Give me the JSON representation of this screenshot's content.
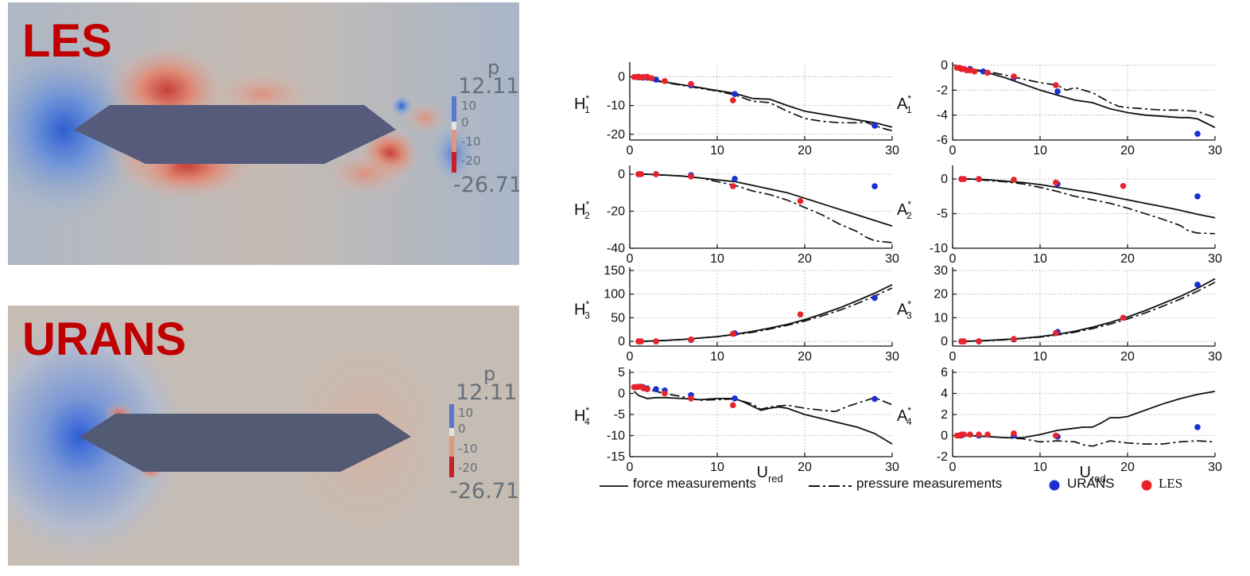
{
  "colors": {
    "blue_marker": "#1a2fd0",
    "red_marker": "#e8232a",
    "body_fill": "#555a7a",
    "label_red": "#c00000"
  },
  "left_panels": {
    "les": {
      "label": "LES",
      "colorbar": {
        "title": "p",
        "max": "12.11",
        "min": "-26.71",
        "ticks": [
          "10",
          "0",
          "-10",
          "-20"
        ]
      }
    },
    "urans": {
      "label": "URANS",
      "colorbar": {
        "title": "p",
        "max": "12.11",
        "min": "-26.71",
        "ticks": [
          "10",
          "0",
          "-10",
          "-20"
        ]
      }
    }
  },
  "legend": {
    "force": "force measurements",
    "pressure": "pressure measurements",
    "urans": "URANS",
    "les": "LES"
  },
  "chart_data": [
    {
      "id": "H1",
      "type": "line",
      "ylabel": "H1*",
      "xlim": [
        0,
        30
      ],
      "ylim": [
        -22,
        4
      ],
      "yticks": [
        0,
        -10,
        -20
      ],
      "series": [
        {
          "name": "force measurements",
          "style": "solid",
          "x": [
            0.5,
            2,
            4,
            6,
            8,
            10,
            12,
            14,
            15,
            16,
            18,
            20,
            22,
            24,
            26,
            28,
            30
          ],
          "y": [
            -0.2,
            -0.8,
            -1.8,
            -2.8,
            -3.8,
            -4.8,
            -5.8,
            -7.5,
            -7.7,
            -7.8,
            -10,
            -12,
            -13,
            -14,
            -15,
            -16,
            -17.5
          ]
        },
        {
          "name": "pressure measurements",
          "style": "dashdot",
          "x": [
            0.5,
            2,
            4,
            6,
            8,
            10,
            12,
            14,
            16,
            18,
            20,
            22,
            24,
            26,
            27,
            28,
            29,
            30
          ],
          "y": [
            -0.3,
            -1,
            -2,
            -3,
            -4,
            -5,
            -6.3,
            -8.5,
            -9,
            -12,
            -14.5,
            -15.5,
            -16,
            -16,
            -15.8,
            -17,
            -18,
            -18.8
          ]
        },
        {
          "name": "URANS",
          "marker": "blue",
          "x": [
            1,
            1.5,
            2,
            3,
            7,
            12,
            28
          ],
          "y": [
            -0.2,
            -0.3,
            -0.3,
            -1,
            -3,
            -6,
            -17
          ]
        },
        {
          "name": "LES",
          "marker": "red",
          "x": [
            0.5,
            0.8,
            1,
            1.3,
            1.6,
            2,
            2.5,
            4,
            7,
            11.8
          ],
          "y": [
            -0.1,
            -0.1,
            0,
            -0.2,
            -0.1,
            0,
            -0.5,
            -1.5,
            -2.5,
            -8.2
          ]
        }
      ]
    },
    {
      "id": "A1",
      "type": "line",
      "ylabel": "A1*",
      "xlim": [
        0,
        30
      ],
      "ylim": [
        -6,
        0
      ],
      "yticks": [
        0,
        -2,
        -4,
        -6
      ],
      "series": [
        {
          "name": "force measurements",
          "style": "solid",
          "x": [
            0.5,
            2,
            4,
            6,
            8,
            10,
            12,
            14,
            16,
            18,
            20,
            22,
            24,
            26,
            27,
            28,
            30
          ],
          "y": [
            -0.1,
            -0.3,
            -0.6,
            -1,
            -1.5,
            -2,
            -2.4,
            -2.8,
            -3,
            -3.5,
            -3.8,
            -4,
            -4.1,
            -4.2,
            -4.2,
            -4.3,
            -5
          ]
        },
        {
          "name": "pressure measurements",
          "style": "dashdot",
          "x": [
            0.5,
            2,
            4,
            6,
            8,
            10,
            12,
            13,
            14,
            16,
            18,
            19,
            20,
            22,
            24,
            26,
            28,
            30
          ],
          "y": [
            -0.1,
            -0.3,
            -0.5,
            -0.8,
            -1.1,
            -1.4,
            -1.6,
            -2,
            -1.8,
            -2.2,
            -3,
            -3.3,
            -3.4,
            -3.5,
            -3.6,
            -3.6,
            -3.7,
            -4.2
          ]
        },
        {
          "name": "URANS",
          "marker": "blue",
          "x": [
            1,
            2,
            3.5,
            7,
            12,
            28
          ],
          "y": [
            -0.3,
            -0.3,
            -0.5,
            -1,
            -2.1,
            -5.5
          ]
        },
        {
          "name": "LES",
          "marker": "red",
          "x": [
            0.5,
            0.8,
            1,
            1.3,
            1.6,
            2,
            2.5,
            4,
            7,
            11.8
          ],
          "y": [
            -0.2,
            -0.2,
            -0.3,
            -0.3,
            -0.4,
            -0.4,
            -0.5,
            -0.6,
            -0.9,
            -1.6
          ]
        }
      ]
    },
    {
      "id": "H2",
      "type": "line",
      "ylabel": "H2*",
      "xlim": [
        0,
        30
      ],
      "ylim": [
        -40,
        3
      ],
      "yticks": [
        0,
        -20,
        -40
      ],
      "series": [
        {
          "name": "force measurements",
          "style": "solid",
          "x": [
            1,
            2,
            4,
            6,
            8,
            10,
            12,
            14,
            16,
            18,
            20,
            22,
            24,
            26,
            28,
            30
          ],
          "y": [
            0,
            0,
            -0.5,
            -1,
            -2,
            -3,
            -4,
            -6,
            -8,
            -10,
            -13,
            -16,
            -19,
            -22,
            -25,
            -28
          ]
        },
        {
          "name": "pressure measurements",
          "style": "dashdot",
          "x": [
            1,
            2,
            4,
            6,
            8,
            10,
            12,
            14,
            16,
            18,
            20,
            22,
            24,
            26,
            27,
            28,
            30
          ],
          "y": [
            0,
            0,
            -0.5,
            -1,
            -2,
            -4,
            -6,
            -9,
            -11,
            -14,
            -18,
            -22,
            -27,
            -31,
            -34,
            -36,
            -37
          ]
        },
        {
          "name": "URANS",
          "marker": "blue",
          "x": [
            1,
            3,
            7,
            12,
            28
          ],
          "y": [
            0,
            0,
            -0.5,
            -2.5,
            -6.5
          ]
        },
        {
          "name": "LES",
          "marker": "red",
          "x": [
            1,
            1.3,
            3,
            7,
            11.8,
            19.5
          ],
          "y": [
            0,
            0,
            0,
            -1.2,
            -6.5,
            -14.5
          ]
        }
      ]
    },
    {
      "id": "A2",
      "type": "line",
      "ylabel": "A2*",
      "xlim": [
        0,
        30
      ],
      "ylim": [
        -10,
        1.5
      ],
      "yticks": [
        0,
        -5,
        -10
      ],
      "series": [
        {
          "name": "force measurements",
          "style": "solid",
          "x": [
            1,
            2,
            4,
            6,
            8,
            10,
            12,
            14,
            16,
            18,
            20,
            22,
            24,
            26,
            28,
            30
          ],
          "y": [
            0,
            0,
            -0.1,
            -0.3,
            -0.5,
            -0.8,
            -1.2,
            -1.6,
            -2,
            -2.5,
            -3,
            -3.5,
            -4,
            -4.5,
            -5.1,
            -5.6
          ]
        },
        {
          "name": "pressure measurements",
          "style": "dashdot",
          "x": [
            1,
            2,
            4,
            6,
            8,
            10,
            12,
            14,
            16,
            18,
            20,
            22,
            24,
            26,
            27,
            28,
            30
          ],
          "y": [
            0,
            0,
            -0.2,
            -0.4,
            -0.7,
            -1.2,
            -1.8,
            -2.5,
            -3,
            -3.5,
            -4.2,
            -5,
            -5.8,
            -6.7,
            -7.5,
            -7.8,
            -7.9
          ]
        },
        {
          "name": "URANS",
          "marker": "blue",
          "x": [
            1,
            3,
            12,
            28
          ],
          "y": [
            0,
            0,
            -0.7,
            -2.5
          ]
        },
        {
          "name": "LES",
          "marker": "red",
          "x": [
            1,
            1.3,
            3,
            7,
            11.8,
            19.5
          ],
          "y": [
            0,
            0,
            0,
            -0.1,
            -0.5,
            -1
          ]
        }
      ]
    },
    {
      "id": "H3",
      "type": "line",
      "ylabel": "H3*",
      "xlim": [
        0,
        30
      ],
      "ylim": [
        -10,
        150
      ],
      "yticks": [
        0,
        50,
        100,
        150
      ],
      "series": [
        {
          "name": "force measurements",
          "style": "solid",
          "x": [
            1,
            2,
            4,
            6,
            8,
            10,
            12,
            14,
            16,
            18,
            20,
            22,
            24,
            26,
            28,
            30
          ],
          "y": [
            0,
            0.5,
            2,
            4,
            7,
            10,
            15,
            21,
            28,
            36,
            46,
            58,
            71,
            86,
            102,
            120
          ]
        },
        {
          "name": "pressure measurements",
          "style": "dashdot",
          "x": [
            1,
            2,
            4,
            6,
            8,
            10,
            12,
            14,
            16,
            18,
            20,
            22,
            24,
            26,
            28,
            30
          ],
          "y": [
            0,
            0.5,
            2,
            4,
            7,
            10,
            14,
            19,
            26,
            34,
            43,
            54,
            66,
            80,
            96,
            113
          ]
        },
        {
          "name": "URANS",
          "marker": "blue",
          "x": [
            1,
            3,
            7,
            12,
            28
          ],
          "y": [
            0,
            0,
            3,
            17,
            92
          ]
        },
        {
          "name": "LES",
          "marker": "red",
          "x": [
            1,
            1.3,
            3,
            7,
            11.8,
            19.5
          ],
          "y": [
            0,
            0,
            0,
            4,
            16,
            57
          ]
        }
      ]
    },
    {
      "id": "A3",
      "type": "line",
      "ylabel": "A3*",
      "xlim": [
        0,
        30
      ],
      "ylim": [
        -2,
        30
      ],
      "yticks": [
        0,
        10,
        20,
        30
      ],
      "series": [
        {
          "name": "force measurements",
          "style": "solid",
          "x": [
            1,
            2,
            4,
            6,
            8,
            10,
            12,
            14,
            16,
            18,
            20,
            22,
            24,
            26,
            28,
            30
          ],
          "y": [
            0,
            0.1,
            0.4,
            0.8,
            1.3,
            2,
            3,
            4.3,
            6,
            8,
            10.3,
            13,
            16,
            19,
            22.5,
            26.5
          ]
        },
        {
          "name": "pressure measurements",
          "style": "dashdot",
          "x": [
            1,
            2,
            4,
            6,
            8,
            10,
            12,
            14,
            16,
            18,
            20,
            22,
            24,
            26,
            28,
            30
          ],
          "y": [
            0,
            0.1,
            0.3,
            0.7,
            1.2,
            1.8,
            2.7,
            3.9,
            5.4,
            7.3,
            9.5,
            12,
            14.8,
            17.8,
            21.2,
            25
          ]
        },
        {
          "name": "URANS",
          "marker": "blue",
          "x": [
            1,
            3,
            7,
            12,
            28
          ],
          "y": [
            0,
            0,
            0.8,
            4,
            24
          ]
        },
        {
          "name": "LES",
          "marker": "red",
          "x": [
            1,
            1.3,
            3,
            7,
            11.8,
            19.5
          ],
          "y": [
            0,
            0,
            0,
            1,
            3.5,
            10
          ]
        }
      ]
    },
    {
      "id": "H4",
      "type": "line",
      "ylabel": "H4*",
      "xlabel": "U_red",
      "xlim": [
        0,
        30
      ],
      "ylim": [
        -15,
        5
      ],
      "yticks": [
        5,
        0,
        -5,
        -10,
        -15
      ],
      "series": [
        {
          "name": "force measurements",
          "style": "solid",
          "x": [
            0.5,
            1,
            2,
            3,
            4,
            6,
            8,
            10,
            12,
            13,
            14,
            15,
            16,
            17,
            18,
            20,
            22,
            24,
            26,
            28,
            30
          ],
          "y": [
            0.5,
            -0.5,
            -1.2,
            -1,
            -1,
            -1.2,
            -1.5,
            -1.2,
            -1.2,
            -2,
            -3,
            -4,
            -3.5,
            -3.2,
            -3.5,
            -5,
            -6,
            -7,
            -8,
            -9.5,
            -12
          ]
        },
        {
          "name": "pressure measurements",
          "style": "dashdot",
          "x": [
            0.5,
            1,
            2,
            3,
            4,
            6,
            8,
            10,
            12,
            14,
            15,
            16,
            18,
            20,
            22,
            23.5,
            25,
            28,
            30
          ],
          "y": [
            1.5,
            1.3,
            1,
            0.5,
            0,
            -0.8,
            -1.6,
            -1.5,
            -1.3,
            -2.5,
            -3.8,
            -3.2,
            -2.8,
            -3.5,
            -4,
            -4.3,
            -3,
            -1,
            -2.7
          ]
        },
        {
          "name": "URANS",
          "marker": "blue",
          "x": [
            1.5,
            2,
            3,
            4,
            7,
            12,
            28
          ],
          "y": [
            1.5,
            1.2,
            1,
            0.7,
            -0.4,
            -1.2,
            -1.3
          ]
        },
        {
          "name": "LES",
          "marker": "red",
          "x": [
            0.5,
            0.8,
            1,
            1.3,
            1.6,
            2,
            4,
            7,
            11.8
          ],
          "y": [
            1.5,
            1.5,
            1.6,
            1.6,
            1.2,
            1,
            0,
            -1.2,
            -2.8
          ]
        }
      ]
    },
    {
      "id": "A4",
      "type": "line",
      "ylabel": "A4*",
      "xlabel": "U_red",
      "xlim": [
        0,
        30
      ],
      "ylim": [
        -2,
        6
      ],
      "yticks": [
        6,
        4,
        2,
        0,
        -2
      ],
      "series": [
        {
          "name": "force measurements",
          "style": "solid",
          "x": [
            1,
            2,
            4,
            6,
            8,
            10,
            12,
            14,
            15,
            16,
            17,
            18,
            19,
            20,
            22,
            24,
            26,
            28,
            30
          ],
          "y": [
            0,
            0,
            -0.1,
            -0.2,
            -0.2,
            0.1,
            0.5,
            0.7,
            0.8,
            0.8,
            1.2,
            1.7,
            1.7,
            1.8,
            2.4,
            3,
            3.5,
            3.9,
            4.2
          ]
        },
        {
          "name": "pressure measurements",
          "style": "dashdot",
          "x": [
            1,
            2,
            4,
            6,
            8,
            10,
            12,
            14,
            15,
            16,
            18,
            20,
            22,
            24,
            26,
            28,
            30
          ],
          "y": [
            0,
            0,
            -0.1,
            -0.2,
            -0.3,
            -0.6,
            -0.5,
            -0.6,
            -0.9,
            -1,
            -0.5,
            -0.7,
            -0.8,
            -0.8,
            -0.6,
            -0.5,
            -0.6
          ]
        },
        {
          "name": "URANS",
          "marker": "blue",
          "x": [
            1,
            3,
            7,
            12,
            28
          ],
          "y": [
            0,
            0,
            0,
            -0.1,
            0.8
          ]
        },
        {
          "name": "LES",
          "marker": "red",
          "x": [
            0.5,
            0.8,
            1,
            1.3,
            2,
            3,
            4,
            7,
            11.8
          ],
          "y": [
            0,
            0,
            0.1,
            0.1,
            0.1,
            0.1,
            0.1,
            0.2,
            0
          ]
        }
      ]
    }
  ]
}
